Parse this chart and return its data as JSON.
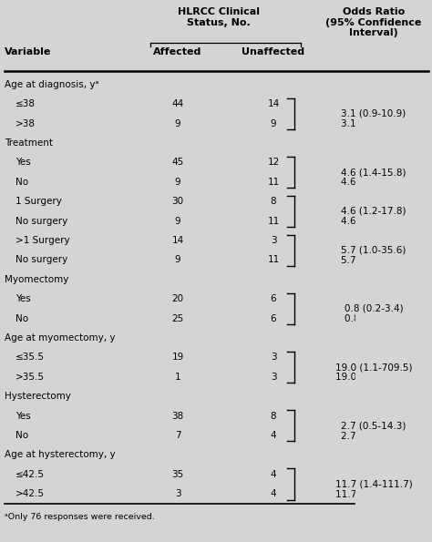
{
  "bg_color": "#d4d4d4",
  "rows": [
    {
      "label": "Age at diagnosis, yᵃ",
      "indent": false,
      "affected": "",
      "unaffected": "",
      "or": "",
      "bracket_top": false,
      "bracket_bottom": false
    },
    {
      "label": "≤38",
      "indent": true,
      "affected": "44",
      "unaffected": "14",
      "or": "",
      "bracket_top": true,
      "bracket_bottom": false
    },
    {
      "label": ">38",
      "indent": true,
      "affected": "9",
      "unaffected": "9",
      "or": "3.1 (0.9-10.9)",
      "bracket_top": false,
      "bracket_bottom": true
    },
    {
      "label": "Treatment",
      "indent": false,
      "affected": "",
      "unaffected": "",
      "or": "",
      "bracket_top": false,
      "bracket_bottom": false
    },
    {
      "label": "Yes",
      "indent": true,
      "affected": "45",
      "unaffected": "12",
      "or": "",
      "bracket_top": true,
      "bracket_bottom": false
    },
    {
      "label": "No",
      "indent": true,
      "affected": "9",
      "unaffected": "11",
      "or": "4.6 (1.4-15.8)",
      "bracket_top": false,
      "bracket_bottom": true
    },
    {
      "label": "1 Surgery",
      "indent": true,
      "affected": "30",
      "unaffected": "8",
      "or": "",
      "bracket_top": true,
      "bracket_bottom": false
    },
    {
      "label": "No surgery",
      "indent": true,
      "affected": "9",
      "unaffected": "11",
      "or": "4.6 (1.2-17.8)",
      "bracket_top": false,
      "bracket_bottom": true
    },
    {
      "label": ">1 Surgery",
      "indent": true,
      "affected": "14",
      "unaffected": "3",
      "or": "",
      "bracket_top": true,
      "bracket_bottom": false
    },
    {
      "label": "No surgery",
      "indent": true,
      "affected": "9",
      "unaffected": "11",
      "or": "5.7 (1.0-35.6)",
      "bracket_top": false,
      "bracket_bottom": true
    },
    {
      "label": "Myomectomy",
      "indent": false,
      "affected": "",
      "unaffected": "",
      "or": "",
      "bracket_top": false,
      "bracket_bottom": false
    },
    {
      "label": "Yes",
      "indent": true,
      "affected": "20",
      "unaffected": "6",
      "or": "",
      "bracket_top": true,
      "bracket_bottom": false
    },
    {
      "label": "No",
      "indent": true,
      "affected": "25",
      "unaffected": "6",
      "or": "0.8 (0.2-3.4)",
      "bracket_top": false,
      "bracket_bottom": true
    },
    {
      "label": "Age at myomectomy, y",
      "indent": false,
      "affected": "",
      "unaffected": "",
      "or": "",
      "bracket_top": false,
      "bracket_bottom": false
    },
    {
      "label": "≤35.5",
      "indent": true,
      "affected": "19",
      "unaffected": "3",
      "or": "",
      "bracket_top": true,
      "bracket_bottom": false
    },
    {
      "label": ">35.5",
      "indent": true,
      "affected": "1",
      "unaffected": "3",
      "or": "19.0 (1.1-709.5)",
      "bracket_top": false,
      "bracket_bottom": true
    },
    {
      "label": "Hysterectomy",
      "indent": false,
      "affected": "",
      "unaffected": "",
      "or": "",
      "bracket_top": false,
      "bracket_bottom": false
    },
    {
      "label": "Yes",
      "indent": true,
      "affected": "38",
      "unaffected": "8",
      "or": "",
      "bracket_top": true,
      "bracket_bottom": false
    },
    {
      "label": "No",
      "indent": true,
      "affected": "7",
      "unaffected": "4",
      "or": "2.7 (0.5-14.3)",
      "bracket_top": false,
      "bracket_bottom": true
    },
    {
      "label": "Age at hysterectomy, y",
      "indent": false,
      "affected": "",
      "unaffected": "",
      "or": "",
      "bracket_top": false,
      "bracket_bottom": false
    },
    {
      "label": "≤42.5",
      "indent": true,
      "affected": "35",
      "unaffected": "4",
      "or": "",
      "bracket_top": true,
      "bracket_bottom": false
    },
    {
      "label": ">42.5",
      "indent": true,
      "affected": "3",
      "unaffected": "4",
      "or": "11.7 (1.4-111.7)",
      "bracket_top": false,
      "bracket_bottom": true
    }
  ],
  "footnote": "ᵃOnly 76 responses were received.",
  "header_main": "HLRCC Clinical\nStatus, No.",
  "header_or": "Odds Ratio\n(95% Confidence\nInterval)",
  "col_variable": "Variable",
  "col_affected": "Affected",
  "col_unaffected": "Unaffected"
}
